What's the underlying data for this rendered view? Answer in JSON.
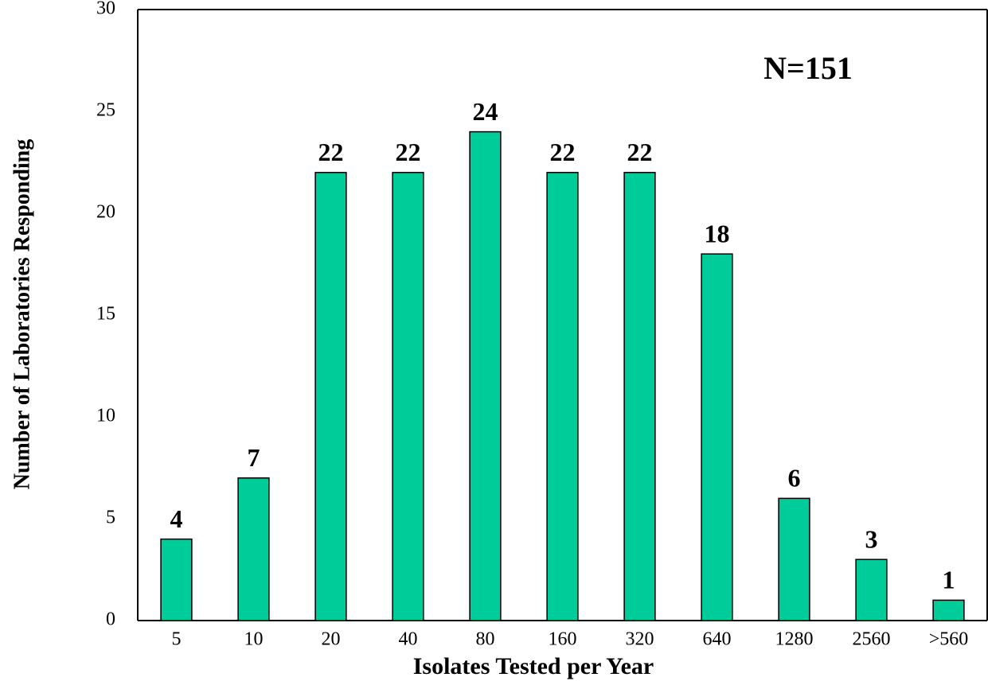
{
  "chart_data": {
    "type": "bar",
    "x_label": "Isolates Tested per Year",
    "y_label": "Number of Laboratories Responding",
    "annotation": "N=151",
    "categories": [
      "5",
      "10",
      "20",
      "40",
      "80",
      "160",
      "320",
      "640",
      "1280",
      "2560",
      ">560"
    ],
    "values": [
      4,
      7,
      22,
      22,
      24,
      22,
      22,
      18,
      6,
      3,
      1
    ],
    "color": "#00cc99",
    "ylim": [
      0,
      30
    ],
    "yticks": [
      0,
      5,
      10,
      15,
      20,
      25,
      30
    ],
    "grid": false
  }
}
